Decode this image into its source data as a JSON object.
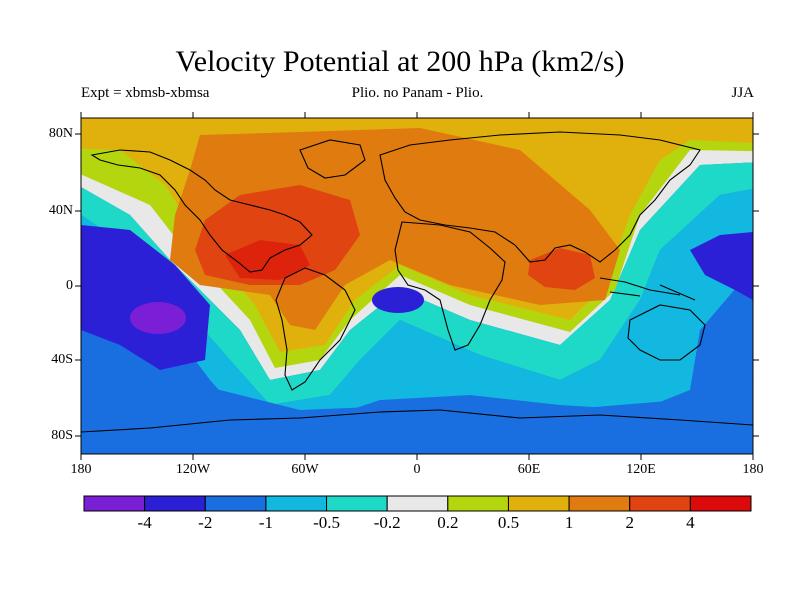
{
  "title": "Velocity Potential at 200 hPa (km2/s)",
  "subtitle_left": "Expt = xbmsb-xbmsa",
  "subtitle_center": "Plio. no Panam - Plio.",
  "subtitle_right": "JJA",
  "map": {
    "projection": "cylindrical equidistant",
    "lon_range": [
      -180,
      180
    ],
    "lat_range": [
      -90,
      90
    ],
    "lat_labels": [
      "80N",
      "40N",
      "0",
      "40S",
      "80S"
    ],
    "lon_labels": [
      "180",
      "120W",
      "60W",
      "0",
      "60E",
      "120E",
      "180"
    ],
    "field": "velocity potential difference",
    "units": "km2/s"
  },
  "colorbar": {
    "levels": [
      "-4",
      "-2",
      "-1",
      "-0.5",
      "-0.2",
      "0.2",
      "0.5",
      "1",
      "2",
      "4"
    ],
    "colors": [
      "#7a1fd6",
      "#2b20d6",
      "#1a6fe0",
      "#12b8e0",
      "#1ed8c8",
      "#e8e8e8",
      "#b4d60f",
      "#e0b10c",
      "#e07b10",
      "#e04410",
      "#dc0a0a"
    ]
  }
}
